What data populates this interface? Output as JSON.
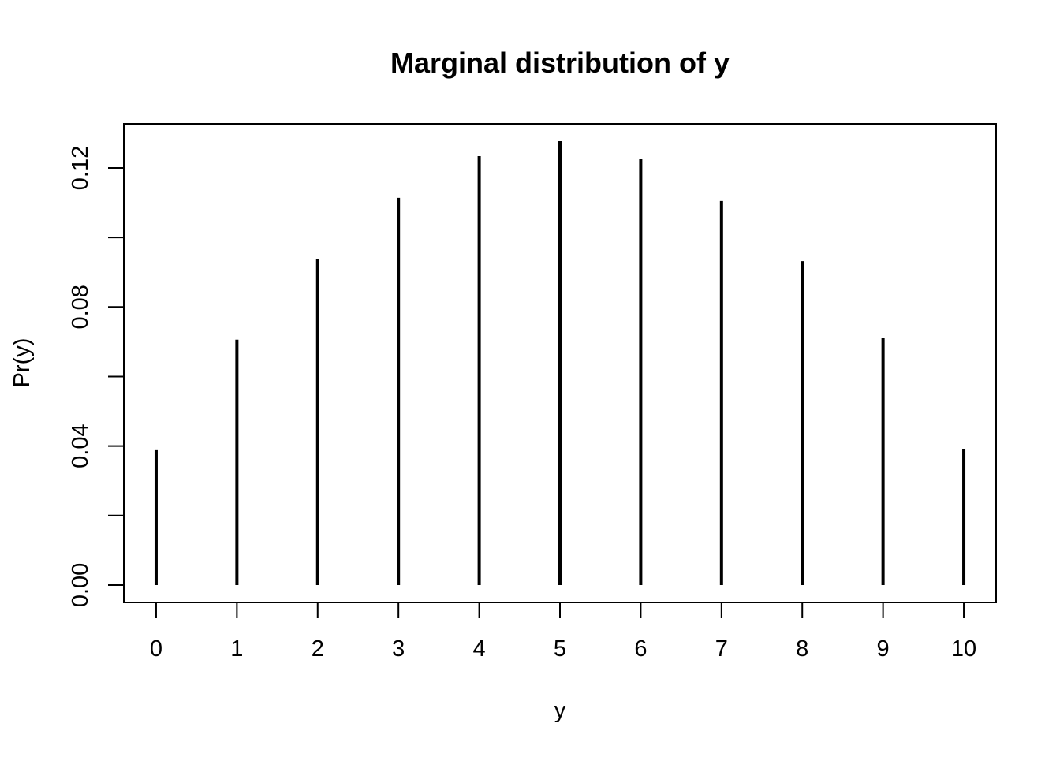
{
  "chart_data": {
    "type": "bar",
    "style": "vertical-lines",
    "title": "Marginal distribution of y",
    "xlabel": "y",
    "ylabel": "Pr(y)",
    "categories": [
      0,
      1,
      2,
      3,
      4,
      5,
      6,
      7,
      8,
      9,
      10
    ],
    "values": [
      0.0388,
      0.0706,
      0.0939,
      0.1114,
      0.1234,
      0.1277,
      0.1225,
      0.1105,
      0.0932,
      0.071,
      0.0392
    ],
    "xlim": [
      -0.4,
      10.4
    ],
    "ylim": [
      -0.005,
      0.1327
    ],
    "x_ticks": [
      "0",
      "1",
      "2",
      "3",
      "4",
      "5",
      "6",
      "7",
      "8",
      "9",
      "10"
    ],
    "y_ticks": [
      0,
      0.02,
      0.04,
      0.06,
      0.08,
      0.1,
      0.12
    ],
    "y_tick_labels": [
      "0.00",
      "0.04",
      "0.08",
      "0.12"
    ],
    "grid": false,
    "line_color": "#000000"
  }
}
